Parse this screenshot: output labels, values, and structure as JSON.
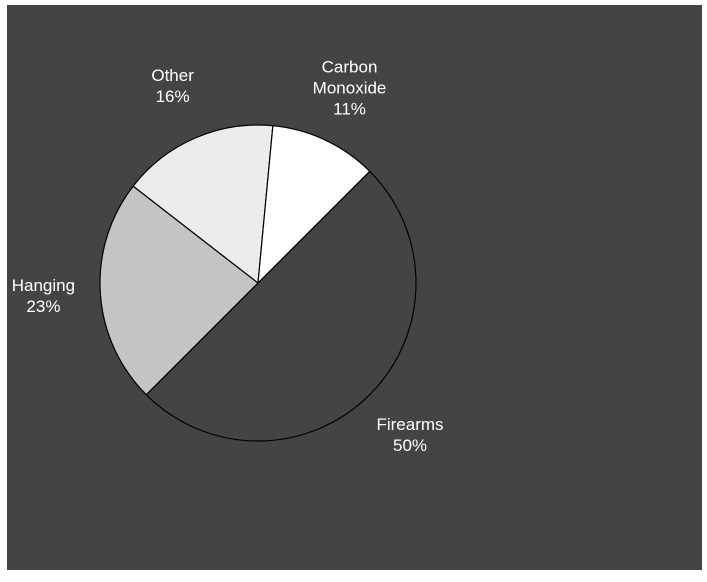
{
  "chart_data": {
    "type": "pie",
    "categories": [
      "Firearms",
      "Hanging",
      "Other",
      "Carbon Monoxide"
    ],
    "values": [
      50,
      23,
      16,
      11
    ],
    "value_labels": [
      "50%",
      "23%",
      "16%",
      "11%"
    ],
    "colors": [
      "#444444",
      "#c4c4c4",
      "#ececec",
      "#ffffff"
    ]
  }
}
